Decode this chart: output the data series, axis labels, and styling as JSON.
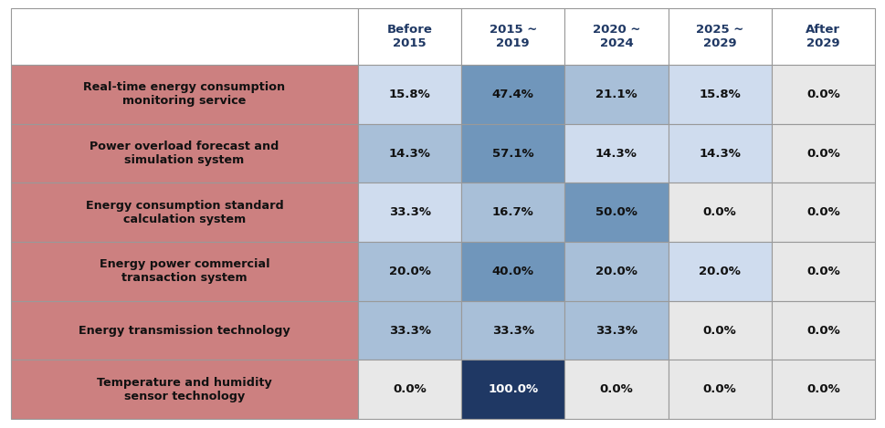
{
  "col_headers": [
    "Before\n2015",
    "2015 ~\n2019",
    "2020 ~\n2024",
    "2025 ~\n2029",
    "After\n2029"
  ],
  "row_labels": [
    "Real-time energy consumption\nmonitoring service",
    "Power overload forecast and\nsimulation system",
    "Energy consumption standard\ncalculation system",
    "Energy power commercial\ntransaction system",
    "Energy transmission technology",
    "Temperature and humidity\nsensor technology"
  ],
  "values": [
    [
      15.8,
      47.4,
      21.1,
      15.8,
      0.0
    ],
    [
      14.3,
      57.1,
      14.3,
      14.3,
      0.0
    ],
    [
      33.3,
      16.7,
      50.0,
      0.0,
      0.0
    ],
    [
      20.0,
      40.0,
      20.0,
      20.0,
      0.0
    ],
    [
      33.3,
      33.3,
      33.3,
      0.0,
      0.0
    ],
    [
      0.0,
      100.0,
      0.0,
      0.0,
      0.0
    ]
  ],
  "row_bg_color": "#cc8080",
  "header_text_color": "#1f3864",
  "color_map": [
    [
      "#cfdcee",
      "#7096bb",
      "#a8bfd8",
      "#cfdcee",
      "#e8e8e8"
    ],
    [
      "#a8bfd8",
      "#7096bb",
      "#cfdcee",
      "#cfdcee",
      "#e8e8e8"
    ],
    [
      "#cfdcee",
      "#a8bfd8",
      "#7096bb",
      "#e8e8e8",
      "#e8e8e8"
    ],
    [
      "#a8bfd8",
      "#7096bb",
      "#a8bfd8",
      "#cfdcee",
      "#e8e8e8"
    ],
    [
      "#a8bfd8",
      "#a8bfd8",
      "#a8bfd8",
      "#e8e8e8",
      "#e8e8e8"
    ],
    [
      "#e8e8e8",
      "#1f3864",
      "#e8e8e8",
      "#e8e8e8",
      "#e8e8e8"
    ]
  ],
  "border_color": "#999999",
  "fig_bg": "#ffffff"
}
